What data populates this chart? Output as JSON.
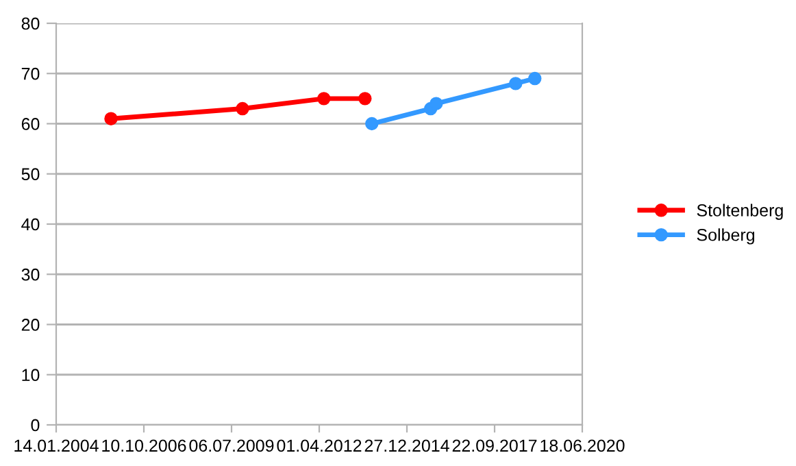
{
  "chart_data": {
    "type": "line",
    "xlim": [
      "2004-01-14",
      "2020-06-18"
    ],
    "xticks": [
      {
        "value": "2004-01-14",
        "label": "14.01.2004"
      },
      {
        "value": "2006-10-10",
        "label": "10.10.2006"
      },
      {
        "value": "2009-07-06",
        "label": "06.07.2009"
      },
      {
        "value": "2012-04-01",
        "label": "01.04.2012"
      },
      {
        "value": "2014-12-27",
        "label": "27.12.2014"
      },
      {
        "value": "2017-09-22",
        "label": "22.09.2017"
      },
      {
        "value": "2020-06-18",
        "label": "18.06.2020"
      }
    ],
    "ylim": [
      0,
      80
    ],
    "yticks": [
      0,
      10,
      20,
      30,
      40,
      50,
      60,
      70,
      80
    ],
    "grid": "y",
    "legend": "right",
    "marker": "circle",
    "line_style": "solid",
    "series": [
      {
        "name": "Stoltenberg",
        "color": "#ff0000",
        "x": [
          "2005-09-30",
          "2009-11-08",
          "2012-05-24",
          "2013-09-05"
        ],
        "values": [
          61,
          63,
          65,
          65
        ]
      },
      {
        "name": "Solberg",
        "color": "#3399ff",
        "x": [
          "2013-11-22",
          "2015-09-24",
          "2015-11-26",
          "2018-05-20",
          "2018-12-25"
        ],
        "values": [
          60,
          63,
          64,
          68,
          69
        ]
      }
    ]
  }
}
